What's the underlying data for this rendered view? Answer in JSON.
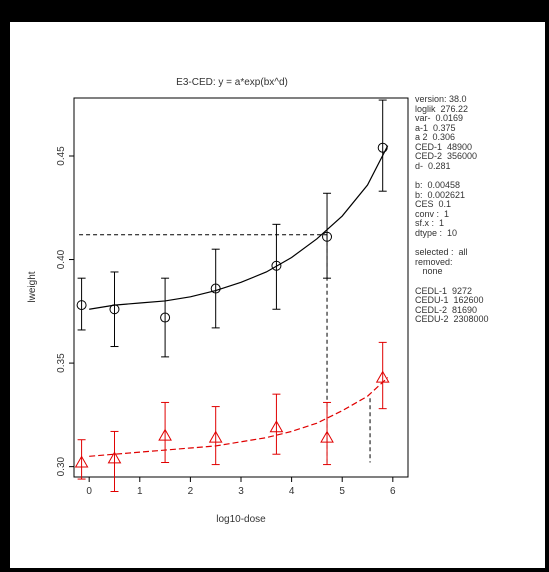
{
  "chart_data": {
    "type": "scatter",
    "title": "E3-CED: y = a*exp(bx^d)",
    "xlabel": "log10-dose",
    "ylabel": "lweight",
    "xlim": [
      -0.3,
      6.3
    ],
    "ylim": [
      0.295,
      0.478
    ],
    "x_ticks": [
      "0",
      "1",
      "2",
      "3",
      "4",
      "5",
      "6"
    ],
    "y_ticks": [
      "0.30",
      "0.35",
      "0.40",
      "0.45"
    ],
    "series": [
      {
        "color": "#000000",
        "marker": "circle",
        "x": [
          -0.15,
          0.5,
          1.5,
          2.5,
          3.7,
          4.7,
          5.8
        ],
        "y": [
          0.378,
          0.376,
          0.372,
          0.386,
          0.397,
          0.411,
          0.454
        ],
        "err_low": [
          0.366,
          0.358,
          0.353,
          0.367,
          0.376,
          0.391,
          0.433
        ],
        "err_high": [
          0.391,
          0.394,
          0.391,
          0.405,
          0.417,
          0.432,
          0.477
        ]
      },
      {
        "color": "#e00000",
        "marker": "triangle",
        "x": [
          -0.15,
          0.5,
          1.5,
          2.5,
          3.7,
          4.7,
          5.8
        ],
        "y": [
          0.302,
          0.304,
          0.315,
          0.314,
          0.319,
          0.314,
          0.343
        ],
        "err_low": [
          0.294,
          0.288,
          0.302,
          0.301,
          0.306,
          0.301,
          0.328
        ],
        "err_high": [
          0.313,
          0.317,
          0.331,
          0.329,
          0.335,
          0.331,
          0.36
        ]
      }
    ],
    "fit_curves": [
      {
        "color": "#000000",
        "x": [
          0.0,
          0.5,
          1.0,
          1.5,
          2.0,
          2.5,
          3.0,
          3.5,
          4.0,
          4.5,
          5.0,
          5.5,
          5.9
        ],
        "y": [
          0.376,
          0.378,
          0.379,
          0.38,
          0.382,
          0.385,
          0.389,
          0.394,
          0.401,
          0.41,
          0.421,
          0.436,
          0.455
        ]
      },
      {
        "color": "#e00000",
        "x": [
          0.0,
          0.5,
          1.0,
          1.5,
          2.0,
          2.5,
          3.0,
          3.5,
          4.0,
          4.5,
          5.0,
          5.5,
          5.9
        ],
        "y": [
          0.305,
          0.306,
          0.307,
          0.308,
          0.309,
          0.31,
          0.312,
          0.314,
          0.317,
          0.321,
          0.327,
          0.334,
          0.343
        ]
      }
    ],
    "ced_lines": [
      {
        "color": "#000000",
        "x_from": -0.2,
        "x_to": 4.7,
        "y_level": 0.412,
        "y_bottom": 0.302
      },
      {
        "color": "#000000",
        "x_from": 5.55,
        "x_to": 5.55,
        "y_level": 0.333,
        "y_bottom": 0.302
      }
    ]
  },
  "info_panel": {
    "block1": [
      "version: 38.0",
      "loglik  276.22",
      "var-  0.0169",
      "a-1  0.375",
      "a 2  0.306",
      "CED-1  48900",
      "CED-2  356000",
      "d-  0.281"
    ],
    "block2": [
      "b:  0.00458",
      "b:  0.002621",
      "CES  0.1",
      "conv :  1",
      "sf.x :  1",
      "dtype :  10"
    ],
    "block3": [
      "selected :  all",
      "removed:",
      "   none"
    ],
    "block4": [
      "CEDL-1  9272",
      "CEDU-1  162600",
      "CEDL-2  81690",
      "CEDU-2  2308000"
    ]
  }
}
